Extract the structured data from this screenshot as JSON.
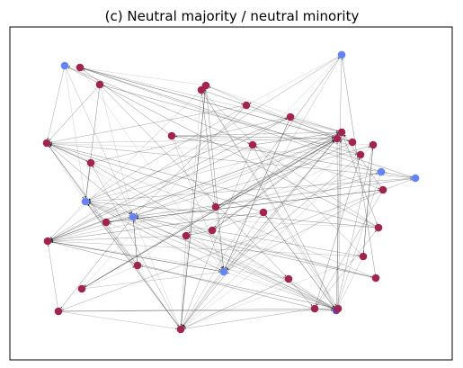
{
  "figure": {
    "title": "(c) Neutral majority / neutral minority"
  },
  "colors": {
    "majority_node": "#a2234f",
    "minority_node": "#6484f5",
    "highlight_node": "#6a3fb0",
    "edge": "#444444",
    "frame": "#000000",
    "background": "#ffffff"
  },
  "graph": {
    "node_groups": [
      "majority",
      "minority",
      "highlight"
    ],
    "node_count": 45,
    "directed": true
  }
}
